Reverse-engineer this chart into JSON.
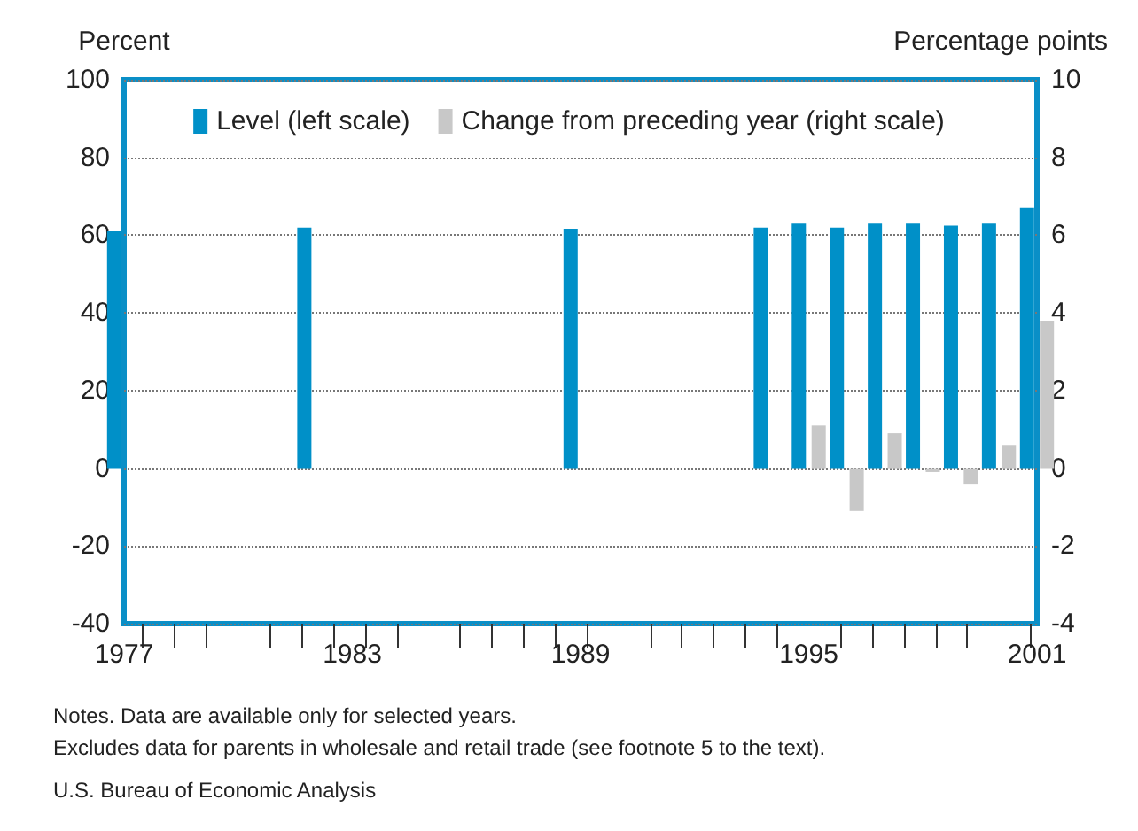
{
  "chart_data": {
    "type": "bar",
    "ylabel": "Percent",
    "y2label": "Percentage points",
    "x": [
      1977,
      1982,
      1989,
      1994,
      1995,
      1996,
      1997,
      1998,
      1999,
      2000,
      2001
    ],
    "series": [
      {
        "name": "Level (left scale)",
        "color": "#0090c8",
        "values": [
          61,
          62,
          61.5,
          62,
          63,
          62,
          63,
          63,
          62.5,
          63,
          67
        ]
      },
      {
        "name": "Change from preceding year (right scale)",
        "color": "#c8c8c8",
        "axis": "y2",
        "values": [
          null,
          null,
          null,
          null,
          1.1,
          -1.1,
          0.9,
          -0.1,
          -0.4,
          0.6,
          3.8
        ]
      }
    ],
    "xlim": [
      1977,
      2001
    ],
    "xticks": [
      1977,
      1983,
      1989,
      1995,
      2001
    ],
    "ylim": [
      -40,
      100
    ],
    "yticks": [
      -40,
      -20,
      0,
      20,
      40,
      60,
      80,
      100
    ],
    "y2lim": [
      -4,
      10
    ],
    "y2ticks": [
      -4,
      -2,
      0,
      2,
      4,
      6,
      8,
      10
    ],
    "grid": "y",
    "legend": "top",
    "annotations": [
      "Notes. Data are available only for selected years.",
      "Excludes data for parents in wholesale and retail trade (see footnote 5 to the text).",
      "U.S. Bureau of Economic Analysis"
    ]
  }
}
